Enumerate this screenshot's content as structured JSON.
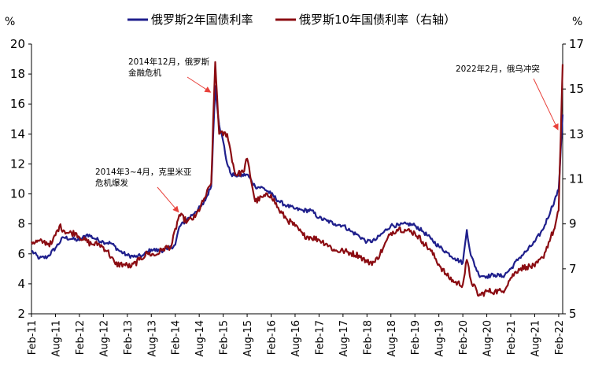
{
  "chart_data": {
    "type": "line",
    "title": "",
    "left_unit": "%",
    "right_unit": "%",
    "y_left": {
      "min": 2,
      "max": 20,
      "ticks": [
        2,
        4,
        6,
        8,
        10,
        12,
        14,
        16,
        18,
        20
      ]
    },
    "y_right": {
      "min": 5,
      "max": 17,
      "ticks": [
        5,
        7,
        9,
        11,
        13,
        15,
        17
      ]
    },
    "x_range": [
      "2011-02",
      "2022-03"
    ],
    "x_ticks": [
      "Feb-11",
      "Aug-11",
      "Feb-12",
      "Aug-12",
      "Feb-13",
      "Aug-13",
      "Feb-14",
      "Aug-14",
      "Feb-15",
      "Aug-15",
      "Feb-16",
      "Aug-16",
      "Feb-17",
      "Aug-17",
      "Feb-18",
      "Aug-18",
      "Feb-19",
      "Aug-19",
      "Feb-20",
      "Aug-20",
      "Feb-21",
      "Aug-21",
      "Feb-22"
    ],
    "legend_position": "top-center",
    "grid": false,
    "series": [
      {
        "name": "俄罗斯2年国债利率",
        "axis": "left",
        "color": "#1f1f8c",
        "points": [
          [
            "2011-02",
            6.2
          ],
          [
            "2011-04",
            5.7
          ],
          [
            "2011-06",
            5.8
          ],
          [
            "2011-08",
            6.4
          ],
          [
            "2011-10",
            7.1
          ],
          [
            "2011-12",
            7.0
          ],
          [
            "2012-02",
            6.9
          ],
          [
            "2012-04",
            7.3
          ],
          [
            "2012-06",
            7.0
          ],
          [
            "2012-08",
            6.8
          ],
          [
            "2012-10",
            6.7
          ],
          [
            "2012-12",
            6.2
          ],
          [
            "2013-02",
            5.9
          ],
          [
            "2013-04",
            5.8
          ],
          [
            "2013-06",
            5.9
          ],
          [
            "2013-08",
            6.3
          ],
          [
            "2013-10",
            6.2
          ],
          [
            "2013-12",
            6.3
          ],
          [
            "2014-02",
            6.6
          ],
          [
            "2014-03",
            7.8
          ],
          [
            "2014-05",
            8.3
          ],
          [
            "2014-07",
            8.8
          ],
          [
            "2014-09",
            9.3
          ],
          [
            "2014-11",
            10.5
          ],
          [
            "2014-12",
            17.2
          ],
          [
            "2015-01",
            14.6
          ],
          [
            "2015-02",
            13.5
          ],
          [
            "2015-03",
            12.0
          ],
          [
            "2015-04",
            11.3
          ],
          [
            "2015-06",
            11.2
          ],
          [
            "2015-08",
            11.3
          ],
          [
            "2015-10",
            10.5
          ],
          [
            "2015-12",
            10.4
          ],
          [
            "2016-02",
            10.0
          ],
          [
            "2016-04",
            9.5
          ],
          [
            "2016-06",
            9.2
          ],
          [
            "2016-08",
            9.0
          ],
          [
            "2016-10",
            8.9
          ],
          [
            "2016-12",
            8.9
          ],
          [
            "2017-02",
            8.4
          ],
          [
            "2017-04",
            8.2
          ],
          [
            "2017-06",
            8.0
          ],
          [
            "2017-08",
            7.9
          ],
          [
            "2017-10",
            7.5
          ],
          [
            "2017-12",
            7.2
          ],
          [
            "2018-02",
            6.8
          ],
          [
            "2018-04",
            6.9
          ],
          [
            "2018-06",
            7.4
          ],
          [
            "2018-08",
            7.9
          ],
          [
            "2018-10",
            7.9
          ],
          [
            "2018-12",
            8.0
          ],
          [
            "2019-02",
            7.9
          ],
          [
            "2019-04",
            7.5
          ],
          [
            "2019-06",
            7.0
          ],
          [
            "2019-08",
            6.5
          ],
          [
            "2019-10",
            6.1
          ],
          [
            "2019-12",
            5.7
          ],
          [
            "2020-02",
            5.4
          ],
          [
            "2020-03",
            7.6
          ],
          [
            "2020-04",
            5.9
          ],
          [
            "2020-06",
            4.6
          ],
          [
            "2020-08",
            4.5
          ],
          [
            "2020-10",
            4.6
          ],
          [
            "2020-12",
            4.5
          ],
          [
            "2021-02",
            5.0
          ],
          [
            "2021-04",
            5.7
          ],
          [
            "2021-06",
            6.2
          ],
          [
            "2021-08",
            6.8
          ],
          [
            "2021-10",
            7.6
          ],
          [
            "2021-12",
            8.9
          ],
          [
            "2022-01",
            9.6
          ],
          [
            "2022-02",
            10.3
          ],
          [
            "2022-03",
            15.3
          ]
        ]
      },
      {
        "name": "俄罗斯10年国债利率（右轴）",
        "axis": "right",
        "color": "#8b0c12",
        "points": [
          [
            "2011-02",
            8.2
          ],
          [
            "2011-05",
            8.2
          ],
          [
            "2011-07",
            8.1
          ],
          [
            "2011-09",
            8.9
          ],
          [
            "2011-11",
            8.6
          ],
          [
            "2012-01",
            8.6
          ],
          [
            "2012-03",
            8.3
          ],
          [
            "2012-05",
            8.1
          ],
          [
            "2012-07",
            8.1
          ],
          [
            "2012-09",
            7.8
          ],
          [
            "2012-11",
            7.2
          ],
          [
            "2013-01",
            7.2
          ],
          [
            "2013-03",
            7.1
          ],
          [
            "2013-05",
            7.4
          ],
          [
            "2013-07",
            7.7
          ],
          [
            "2013-09",
            7.6
          ],
          [
            "2013-11",
            7.9
          ],
          [
            "2014-01",
            8.0
          ],
          [
            "2014-03",
            9.4
          ],
          [
            "2014-05",
            9.1
          ],
          [
            "2014-07",
            9.3
          ],
          [
            "2014-09",
            10.0
          ],
          [
            "2014-11",
            10.8
          ],
          [
            "2014-12",
            16.2
          ],
          [
            "2015-01",
            13.0
          ],
          [
            "2015-03",
            13.0
          ],
          [
            "2015-05",
            11.2
          ],
          [
            "2015-07",
            11.3
          ],
          [
            "2015-08",
            11.9
          ],
          [
            "2015-10",
            10.0
          ],
          [
            "2015-12",
            10.2
          ],
          [
            "2016-02",
            10.3
          ],
          [
            "2016-04",
            9.6
          ],
          [
            "2016-06",
            9.2
          ],
          [
            "2016-08",
            8.9
          ],
          [
            "2016-10",
            8.5
          ],
          [
            "2016-12",
            8.4
          ],
          [
            "2017-02",
            8.3
          ],
          [
            "2017-04",
            8.1
          ],
          [
            "2017-06",
            7.8
          ],
          [
            "2017-08",
            7.8
          ],
          [
            "2017-10",
            7.7
          ],
          [
            "2017-12",
            7.6
          ],
          [
            "2018-02",
            7.3
          ],
          [
            "2018-04",
            7.3
          ],
          [
            "2018-06",
            7.9
          ],
          [
            "2018-08",
            8.6
          ],
          [
            "2018-10",
            8.8
          ],
          [
            "2018-12",
            8.7
          ],
          [
            "2019-02",
            8.6
          ],
          [
            "2019-04",
            8.2
          ],
          [
            "2019-06",
            7.8
          ],
          [
            "2019-08",
            7.2
          ],
          [
            "2019-10",
            6.7
          ],
          [
            "2019-12",
            6.4
          ],
          [
            "2020-02",
            6.3
          ],
          [
            "2020-03",
            7.4
          ],
          [
            "2020-04",
            6.5
          ],
          [
            "2020-06",
            5.8
          ],
          [
            "2020-08",
            6.0
          ],
          [
            "2020-10",
            6.0
          ],
          [
            "2020-12",
            6.0
          ],
          [
            "2021-02",
            6.6
          ],
          [
            "2021-04",
            7.0
          ],
          [
            "2021-06",
            7.1
          ],
          [
            "2021-08",
            7.1
          ],
          [
            "2021-10",
            7.5
          ],
          [
            "2021-12",
            8.4
          ],
          [
            "2022-01",
            8.8
          ],
          [
            "2022-02",
            9.6
          ],
          [
            "2022-03",
            16.1
          ]
        ]
      }
    ],
    "annotations": [
      {
        "lines": [
          "2014年12月，俄罗斯",
          "金融危机"
        ],
        "date": "2014-12",
        "value": 17.0,
        "axis": "left"
      },
      {
        "lines": [
          "2014年3~4月，克里米亚",
          "危机爆发"
        ],
        "date": "2014-04",
        "value": 9.0,
        "axis": "left"
      },
      {
        "lines": [
          "2022年2月，俄乌冲突"
        ],
        "date": "2022-03",
        "value": 14.5,
        "axis": "left"
      }
    ]
  }
}
